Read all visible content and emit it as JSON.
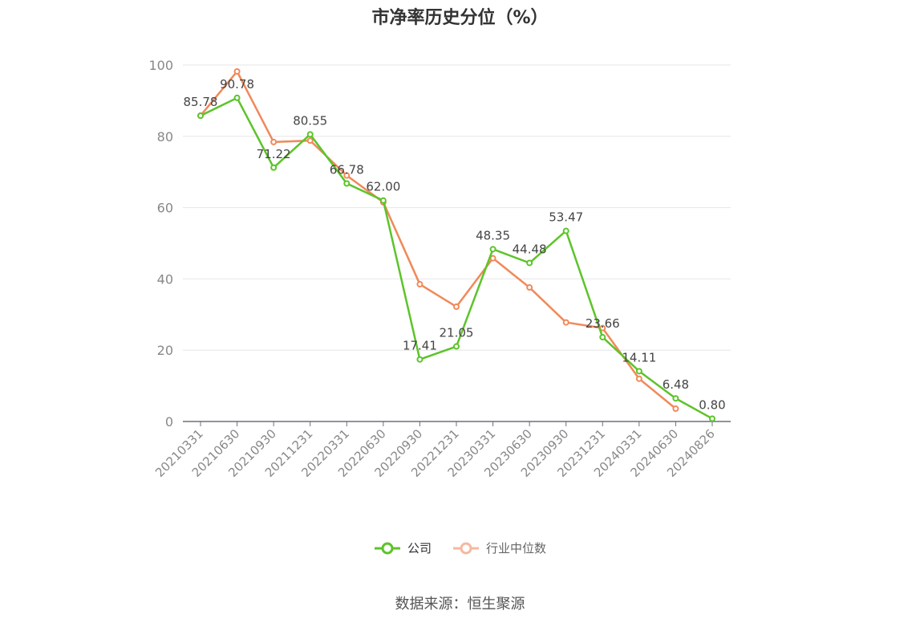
{
  "chart_data": {
    "type": "line",
    "title": "市净率历史分位（%）",
    "categories": [
      "20210331",
      "20210630",
      "20210930",
      "20211231",
      "20220331",
      "20220630",
      "20220930",
      "20221231",
      "20230331",
      "20230630",
      "20230930",
      "20231231",
      "20240331",
      "20240630",
      "20240826"
    ],
    "series": [
      {
        "name": "公司",
        "color": "#5cc42a",
        "values": [
          85.78,
          90.78,
          71.22,
          80.55,
          66.78,
          62.0,
          17.41,
          21.05,
          48.35,
          44.48,
          53.47,
          23.66,
          14.11,
          6.48,
          0.8
        ],
        "labels": [
          "85.78",
          "90.78",
          "71.22",
          "80.55",
          "66.78",
          "62.00",
          "17.41",
          "21.05",
          "48.35",
          "44.48",
          "53.47",
          "23.66",
          "14.11",
          "6.48",
          "0.80"
        ]
      },
      {
        "name": "行业中位数",
        "color": "#f0895a",
        "values": [
          85.8,
          98.2,
          78.4,
          78.8,
          69.0,
          61.5,
          38.5,
          32.2,
          45.8,
          37.6,
          27.8,
          26.2,
          12.0,
          3.6,
          null
        ]
      }
    ],
    "ylim": [
      0,
      100
    ],
    "yticks": [
      "0",
      "20",
      "40",
      "60",
      "80",
      "100"
    ],
    "grid": true,
    "legend_position": "bottom"
  },
  "legend": {
    "items": [
      {
        "label": "公司",
        "color": "#5cc42a"
      },
      {
        "label": "行业中位数",
        "color": "#f5b9a0"
      }
    ]
  },
  "source": "数据来源：恒生聚源"
}
